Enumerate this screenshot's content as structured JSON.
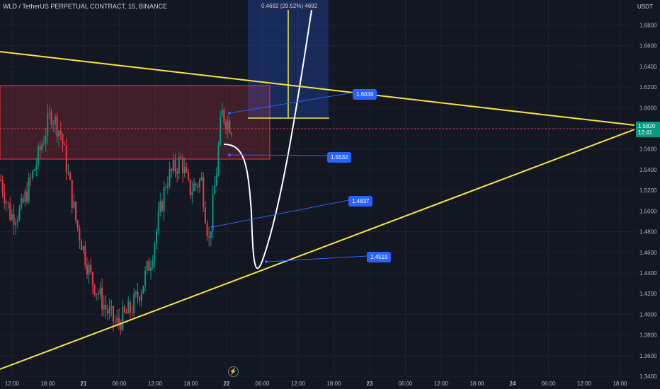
{
  "header": {
    "title": "WLD / TetherUS PERPETUAL CONTRACT, 15, BINANCE",
    "currency": "USDT"
  },
  "last_price": {
    "value": "1.5820",
    "countdown": "12:41"
  },
  "measure_label": "0.4692 (29.52%) 4692",
  "callouts": [
    {
      "text": "1.6036"
    },
    {
      "text": "1.5532"
    },
    {
      "text": "1.4837"
    },
    {
      "text": "1.4519"
    }
  ],
  "icons": {
    "bolt": "lightning-icon"
  },
  "colors": {
    "background": "#131722",
    "bull": "#089981",
    "bear": "#f23645",
    "trend": "#f7e53b",
    "callout": "#2962ff"
  },
  "chart_data": {
    "type": "candlestick",
    "ylabel": "USDT",
    "ylim": [
      1.34,
      1.7
    ],
    "y_ticks": [
      "1.6800",
      "1.6600",
      "1.6400",
      "1.6200",
      "1.6000",
      "1.5800",
      "1.5600",
      "1.5400",
      "1.5200",
      "1.5000",
      "1.4800",
      "1.4600",
      "1.4400",
      "1.4200",
      "1.4000",
      "1.3800",
      "1.3600",
      "1.3400"
    ],
    "x_ticks": [
      "12:00",
      "18:00",
      "21",
      "06:00",
      "12:00",
      "18:00",
      "22",
      "06:00",
      "12:00",
      "18:00",
      "23",
      "06:00",
      "12:00",
      "18:00",
      "24",
      "06:00",
      "12:00",
      "18:00"
    ],
    "anchors": [
      {
        "t": 0,
        "p": 1.53
      },
      {
        "t": 4,
        "p": 1.495
      },
      {
        "t": 8,
        "p": 1.5
      },
      {
        "t": 14,
        "p": 1.545
      },
      {
        "t": 20,
        "p": 1.595
      },
      {
        "t": 24,
        "p": 1.575
      },
      {
        "t": 30,
        "p": 1.49
      },
      {
        "t": 36,
        "p": 1.435
      },
      {
        "t": 42,
        "p": 1.405
      },
      {
        "t": 46,
        "p": 1.39
      },
      {
        "t": 52,
        "p": 1.405
      },
      {
        "t": 56,
        "p": 1.425
      },
      {
        "t": 60,
        "p": 1.455
      },
      {
        "t": 66,
        "p": 1.53
      },
      {
        "t": 72,
        "p": 1.55
      },
      {
        "t": 75,
        "p": 1.52
      },
      {
        "t": 80,
        "p": 1.53
      },
      {
        "t": 83,
        "p": 1.47
      },
      {
        "t": 86,
        "p": 1.54
      },
      {
        "t": 88,
        "p": 1.595
      },
      {
        "t": 92,
        "p": 1.582
      }
    ],
    "supply_zone": {
      "top": 1.62,
      "bottom": 1.55
    },
    "target_line": 1.59,
    "measure": {
      "change": 0.4692,
      "percent": 29.52
    },
    "triangle": {
      "upper_line": [
        {
          "x": "12:00 (20th)",
          "y": 1.65
        },
        {
          "x": "18:00 (24th)",
          "y": 1.58
        }
      ],
      "lower_line": [
        {
          "x": "10:00 (20th)",
          "y": 1.333
        },
        {
          "x": "18:00 (24th)",
          "y": 1.575
        }
      ]
    },
    "projection_path": [
      1.563,
      1.555,
      1.437,
      1.6,
      1.7
    ]
  }
}
